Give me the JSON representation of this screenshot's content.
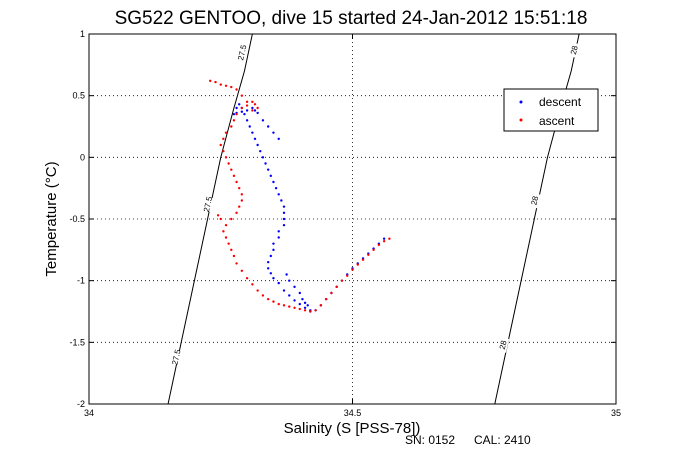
{
  "chart_data": {
    "type": "scatter",
    "title": "SG522 GENTOO, dive 15 started 24-Jan-2012 15:51:18",
    "xlabel": "Salinity (S [PSS-78])",
    "ylabel": "Temperature (°C)",
    "xlim": [
      34,
      35
    ],
    "ylim": [
      -2,
      1
    ],
    "x_ticks": [
      34,
      34.5,
      35
    ],
    "x_tick_labels": [
      "34",
      "34.5",
      "35"
    ],
    "y_ticks": [
      -2,
      -1.5,
      -1,
      -0.5,
      0,
      0.5,
      1
    ],
    "y_tick_labels": [
      "-2",
      "-1.5",
      "-1",
      "-0.5",
      "0",
      "0.5",
      "1"
    ],
    "grid": true,
    "legend_position": "top-right",
    "colors": {
      "descent": "#0000ff",
      "ascent": "#ff0000",
      "contour": "#000000"
    },
    "contours": [
      {
        "label": "27.5",
        "points": [
          [
            34.15,
            -2.0
          ],
          [
            34.17,
            -1.6
          ],
          [
            34.2,
            -1.0
          ],
          [
            34.225,
            -0.5
          ],
          [
            34.25,
            0.0
          ],
          [
            34.275,
            0.4
          ],
          [
            34.295,
            0.7
          ],
          [
            34.31,
            1.0
          ]
        ],
        "label_positions": [
          [
            34.165,
            -1.62
          ],
          [
            34.225,
            -0.38
          ],
          [
            34.29,
            0.85
          ]
        ]
      },
      {
        "label": "28",
        "points": [
          [
            34.77,
            -2.0
          ],
          [
            34.79,
            -1.6
          ],
          [
            34.82,
            -1.0
          ],
          [
            34.845,
            -0.5
          ],
          [
            34.87,
            0.0
          ],
          [
            34.895,
            0.4
          ],
          [
            34.915,
            0.7
          ],
          [
            34.93,
            1.0
          ]
        ],
        "label_positions": [
          [
            34.785,
            -1.52
          ],
          [
            34.845,
            -0.35
          ],
          [
            34.92,
            0.87
          ]
        ]
      }
    ],
    "series": [
      {
        "name": "descent",
        "marker": "dot",
        "x": [
          34.56,
          34.55,
          34.54,
          34.53,
          34.52,
          34.51,
          34.5,
          34.49,
          34.48,
          34.47,
          34.46,
          34.45,
          34.44,
          34.43,
          34.42,
          34.41,
          34.4,
          34.39,
          34.38,
          34.37,
          34.36,
          34.35,
          34.345,
          34.34,
          34.34,
          34.345,
          34.35,
          34.35,
          34.36,
          34.36,
          34.37,
          34.37,
          34.37,
          34.37,
          34.365,
          34.36,
          34.355,
          34.35,
          34.345,
          34.34,
          34.335,
          34.33,
          34.325,
          34.32,
          34.315,
          34.31,
          34.305,
          34.3,
          34.295,
          34.29,
          34.285,
          34.28,
          34.275,
          34.28,
          34.29,
          34.3,
          34.31,
          34.315,
          34.32,
          34.33,
          34.34,
          34.35,
          34.36,
          34.375,
          34.38,
          34.39,
          34.4,
          34.405,
          34.41,
          34.415,
          34.42
        ],
        "y": [
          -0.66,
          -0.7,
          -0.74,
          -0.78,
          -0.82,
          -0.86,
          -0.9,
          -0.95,
          -1.0,
          -1.05,
          -1.1,
          -1.15,
          -1.2,
          -1.24,
          -1.25,
          -1.22,
          -1.19,
          -1.16,
          -1.12,
          -1.08,
          -1.02,
          -0.98,
          -0.94,
          -0.9,
          -0.85,
          -0.8,
          -0.75,
          -0.7,
          -0.65,
          -0.6,
          -0.55,
          -0.5,
          -0.45,
          -0.4,
          -0.35,
          -0.3,
          -0.25,
          -0.2,
          -0.15,
          -0.1,
          -0.05,
          0.0,
          0.05,
          0.1,
          0.15,
          0.2,
          0.25,
          0.3,
          0.35,
          0.4,
          0.43,
          0.4,
          0.35,
          0.36,
          0.37,
          0.38,
          0.4,
          0.38,
          0.36,
          0.3,
          0.25,
          0.2,
          0.15,
          -0.95,
          -1.0,
          -1.05,
          -1.1,
          -1.15,
          -1.18,
          -1.2,
          -1.24
        ]
      },
      {
        "name": "ascent",
        "marker": "dot",
        "x": [
          34.57,
          34.56,
          34.55,
          34.54,
          34.53,
          34.52,
          34.51,
          34.5,
          34.49,
          34.48,
          34.47,
          34.46,
          34.45,
          34.44,
          34.43,
          34.42,
          34.41,
          34.4,
          34.39,
          34.38,
          34.37,
          34.36,
          34.35,
          34.34,
          34.33,
          34.32,
          34.31,
          34.3,
          34.29,
          34.28,
          34.275,
          34.27,
          34.265,
          34.26,
          34.255,
          34.26,
          34.27,
          34.28,
          34.285,
          34.29,
          34.29,
          34.285,
          34.28,
          34.275,
          34.27,
          34.265,
          34.26,
          34.255,
          34.25,
          34.255,
          34.26,
          34.27,
          34.275,
          34.28,
          34.29,
          34.3,
          34.31,
          34.315,
          34.32,
          34.31,
          34.3,
          34.29,
          34.28,
          34.27,
          34.26,
          34.25,
          34.24,
          34.23,
          34.245,
          34.25
        ],
        "y": [
          -0.66,
          -0.68,
          -0.71,
          -0.75,
          -0.79,
          -0.83,
          -0.87,
          -0.91,
          -0.96,
          -1.0,
          -1.05,
          -1.1,
          -1.15,
          -1.2,
          -1.24,
          -1.25,
          -1.24,
          -1.23,
          -1.22,
          -1.21,
          -1.2,
          -1.19,
          -1.17,
          -1.15,
          -1.12,
          -1.08,
          -1.03,
          -0.98,
          -0.92,
          -0.86,
          -0.8,
          -0.75,
          -0.7,
          -0.65,
          -0.6,
          -0.55,
          -0.5,
          -0.45,
          -0.4,
          -0.35,
          -0.3,
          -0.25,
          -0.2,
          -0.15,
          -0.1,
          -0.05,
          0.0,
          0.05,
          0.1,
          0.15,
          0.2,
          0.25,
          0.3,
          0.35,
          0.4,
          0.42,
          0.45,
          0.43,
          0.4,
          0.38,
          0.45,
          0.5,
          0.55,
          0.57,
          0.58,
          0.59,
          0.61,
          0.62,
          -0.47,
          -0.5
        ]
      }
    ]
  },
  "footer": {
    "serial": "SN: 0152",
    "calibration": "CAL: 2410"
  }
}
